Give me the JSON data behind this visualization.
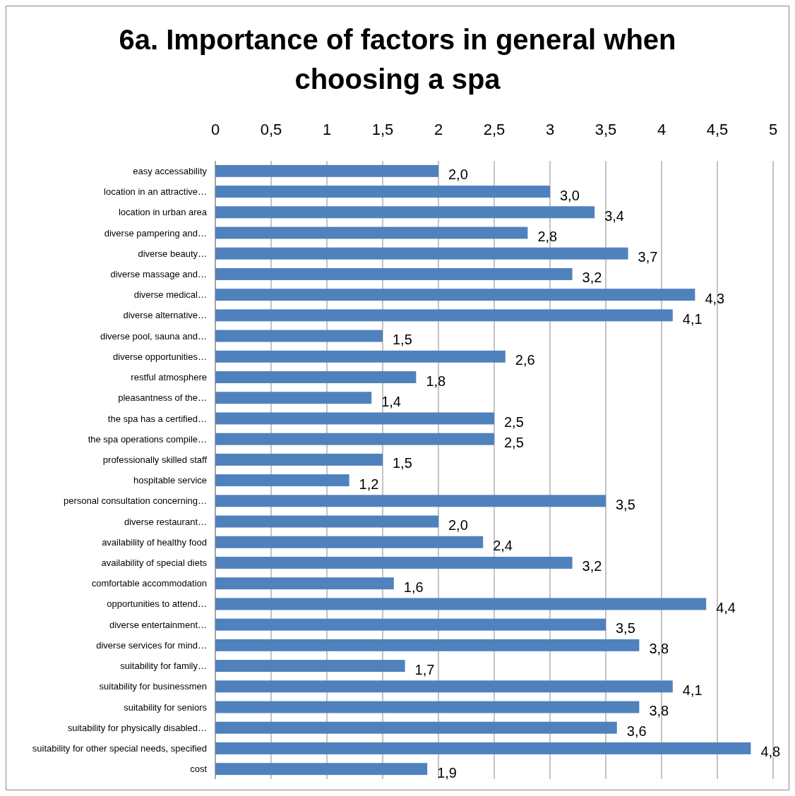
{
  "chart_data": {
    "type": "bar",
    "orientation": "horizontal",
    "title": "6a. Importance of factors in general when choosing a spa",
    "categories": [
      "easy accessability",
      "location in an attractive…",
      "location in urban area",
      "diverse pampering and…",
      "diverse beauty…",
      "diverse massage and…",
      "diverse medical…",
      "diverse alternative…",
      "diverse pool, sauna and…",
      "diverse opportunities…",
      "restful atmosphere",
      "pleasantness of the…",
      "the spa has a certified…",
      "the spa operations compile…",
      "professionally skilled staff",
      "hospitable service",
      "personal consultation concerning…",
      "diverse restaurant…",
      "availability of healthy food",
      "availability of special diets",
      "comfortable accommodation",
      "opportunities to attend…",
      "diverse entertainment…",
      "diverse services for mind…",
      "suitability for family…",
      "suitability for businessmen",
      "suitability for seniors",
      "suitability for physically disabled…",
      "suitability for other special needs, specified",
      "cost"
    ],
    "values": [
      2.0,
      3.0,
      3.4,
      2.8,
      3.7,
      3.2,
      4.3,
      4.1,
      1.5,
      2.6,
      1.8,
      1.4,
      2.5,
      2.5,
      1.5,
      1.2,
      3.5,
      2.0,
      2.4,
      3.2,
      1.6,
      4.4,
      3.5,
      3.8,
      1.7,
      4.1,
      3.8,
      3.6,
      4.8,
      1.9
    ],
    "value_labels": [
      "2,0",
      "3,0",
      "3,4",
      "2,8",
      "3,7",
      "3,2",
      "4,3",
      "4,1",
      "1,5",
      "2,6",
      "1,8",
      "1,4",
      "2,5",
      "2,5",
      "1,5",
      "1,2",
      "3,5",
      "2,0",
      "2,4",
      "3,2",
      "1,6",
      "4,4",
      "3,5",
      "3,8",
      "1,7",
      "4,1",
      "3,8",
      "3,6",
      "4,8",
      "1,9"
    ],
    "color": "#4f81bd",
    "xlim": [
      0,
      5
    ],
    "xticks": [
      0,
      {
        "value": 0.5,
        "label": "0,5"
      },
      1,
      {
        "value": 1.5,
        "label": "1,5"
      },
      2,
      {
        "value": 2.5,
        "label": "2,5"
      },
      3,
      {
        "value": 3.5,
        "label": "3,5"
      },
      4,
      {
        "value": 4.5,
        "label": "4,5"
      },
      5
    ],
    "grid": "x"
  }
}
